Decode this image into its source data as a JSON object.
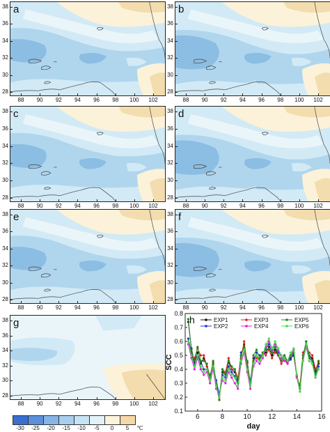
{
  "maps": [
    {
      "letter": "a",
      "variant": 1
    },
    {
      "letter": "b",
      "variant": 2
    },
    {
      "letter": "c",
      "variant": 1
    },
    {
      "letter": "d",
      "variant": 2
    },
    {
      "letter": "e",
      "variant": 1
    },
    {
      "letter": "f",
      "variant": 2
    },
    {
      "letter": "g",
      "variant": 3
    }
  ],
  "lat_ticks": [
    "38",
    "36",
    "34",
    "32",
    "30",
    "28"
  ],
  "lon_ticks": [
    "88",
    "90",
    "92",
    "94",
    "96",
    "98",
    "100",
    "102"
  ],
  "colorbar": {
    "labels": [
      "-30",
      "-25",
      "-20",
      "-15",
      "-10",
      "-5",
      "0",
      "5"
    ],
    "unit": "℃",
    "colors": [
      "#3a6fd0",
      "#5c8fdc",
      "#86b4e6",
      "#a8cfee",
      "#c6e3f3",
      "#e2f2f8",
      "#fbf3dc",
      "#f3d9a8"
    ]
  },
  "colors": {
    "deep_blue": "#8cbde3",
    "mid_blue": "#b0d6ee",
    "light_blue": "#d2eaf5",
    "very_light": "#eaf5fa",
    "cream": "#fbf2d9",
    "tan": "#f3dcae",
    "coast": "#444444"
  },
  "chart_data": {
    "type": "line",
    "panel_letter": "h",
    "xlabel": "day",
    "ylabel": "SCC",
    "xlim": [
      5,
      16
    ],
    "ylim": [
      0.1,
      0.8
    ],
    "xticks": [
      6,
      8,
      10,
      12,
      14,
      16
    ],
    "yticks": [
      0.1,
      0.2,
      0.3,
      0.4,
      0.5,
      0.6,
      0.7,
      0.8
    ],
    "x": [
      5.25,
      5.5,
      5.75,
      6.0,
      6.25,
      6.5,
      6.75,
      7.0,
      7.25,
      7.5,
      7.75,
      8.0,
      8.25,
      8.5,
      8.75,
      9.0,
      9.25,
      9.5,
      9.75,
      10.0,
      10.25,
      10.5,
      10.75,
      11.0,
      11.25,
      11.5,
      11.75,
      12.0,
      12.25,
      12.5,
      12.75,
      13.0,
      13.25,
      13.5,
      13.75,
      14.0,
      14.25,
      14.5,
      14.75,
      15.0,
      15.25,
      15.5,
      15.75
    ],
    "legend_placement": "top-left",
    "series": [
      {
        "name": "EXP1",
        "color": "#111111",
        "values": [
          0.74,
          0.55,
          0.45,
          0.52,
          0.44,
          0.48,
          0.42,
          0.35,
          0.44,
          0.3,
          0.2,
          0.38,
          0.36,
          0.45,
          0.4,
          0.38,
          0.32,
          0.5,
          0.58,
          0.45,
          0.3,
          0.48,
          0.5,
          0.47,
          0.5,
          0.52,
          0.56,
          0.5,
          0.54,
          0.5,
          0.46,
          0.5,
          0.46,
          0.48,
          0.5,
          0.35,
          0.28,
          0.5,
          0.58,
          0.5,
          0.48,
          0.38,
          0.44
        ]
      },
      {
        "name": "EXP2",
        "color": "#2233cc",
        "values": [
          0.62,
          0.52,
          0.43,
          0.5,
          0.46,
          0.4,
          0.4,
          0.36,
          0.42,
          0.32,
          0.22,
          0.36,
          0.34,
          0.42,
          0.38,
          0.35,
          0.3,
          0.52,
          0.55,
          0.42,
          0.32,
          0.45,
          0.52,
          0.5,
          0.5,
          0.55,
          0.58,
          0.52,
          0.56,
          0.52,
          0.5,
          0.48,
          0.45,
          0.47,
          0.52,
          0.36,
          0.26,
          0.48,
          0.6,
          0.48,
          0.46,
          0.36,
          0.42
        ]
      },
      {
        "name": "EXP3",
        "color": "#e02020",
        "values": [
          0.6,
          0.5,
          0.48,
          0.55,
          0.5,
          0.5,
          0.42,
          0.33,
          0.45,
          0.28,
          0.18,
          0.4,
          0.38,
          0.48,
          0.4,
          0.4,
          0.34,
          0.48,
          0.6,
          0.44,
          0.28,
          0.46,
          0.48,
          0.46,
          0.52,
          0.5,
          0.54,
          0.48,
          0.52,
          0.5,
          0.44,
          0.48,
          0.44,
          0.5,
          0.52,
          0.34,
          0.28,
          0.52,
          0.56,
          0.52,
          0.5,
          0.4,
          0.45
        ]
      },
      {
        "name": "EXP4",
        "color": "#dd22dd",
        "values": [
          0.58,
          0.48,
          0.4,
          0.48,
          0.4,
          0.36,
          0.38,
          0.3,
          0.4,
          0.26,
          0.22,
          0.32,
          0.3,
          0.38,
          0.34,
          0.3,
          0.26,
          0.44,
          0.52,
          0.38,
          0.26,
          0.42,
          0.46,
          0.44,
          0.48,
          0.56,
          0.6,
          0.54,
          0.58,
          0.54,
          0.48,
          0.46,
          0.44,
          0.5,
          0.54,
          0.34,
          0.24,
          0.46,
          0.56,
          0.46,
          0.44,
          0.34,
          0.4
        ]
      },
      {
        "name": "EXP5",
        "color": "#228822",
        "values": [
          0.76,
          0.54,
          0.46,
          0.56,
          0.46,
          0.46,
          0.44,
          0.34,
          0.46,
          0.3,
          0.18,
          0.4,
          0.36,
          0.46,
          0.42,
          0.4,
          0.3,
          0.5,
          0.56,
          0.46,
          0.3,
          0.5,
          0.54,
          0.48,
          0.52,
          0.54,
          0.55,
          0.52,
          0.56,
          0.5,
          0.46,
          0.5,
          0.46,
          0.5,
          0.52,
          0.36,
          0.26,
          0.5,
          0.6,
          0.5,
          0.46,
          0.36,
          0.46
        ]
      },
      {
        "name": "EXP6",
        "color": "#44dd44",
        "values": [
          0.6,
          0.5,
          0.42,
          0.5,
          0.42,
          0.38,
          0.4,
          0.32,
          0.42,
          0.28,
          0.2,
          0.34,
          0.32,
          0.4,
          0.36,
          0.34,
          0.28,
          0.46,
          0.54,
          0.4,
          0.28,
          0.44,
          0.5,
          0.46,
          0.5,
          0.58,
          0.62,
          0.55,
          0.6,
          0.55,
          0.5,
          0.48,
          0.46,
          0.52,
          0.55,
          0.36,
          0.24,
          0.46,
          0.58,
          0.46,
          0.44,
          0.34,
          0.4
        ]
      }
    ]
  }
}
